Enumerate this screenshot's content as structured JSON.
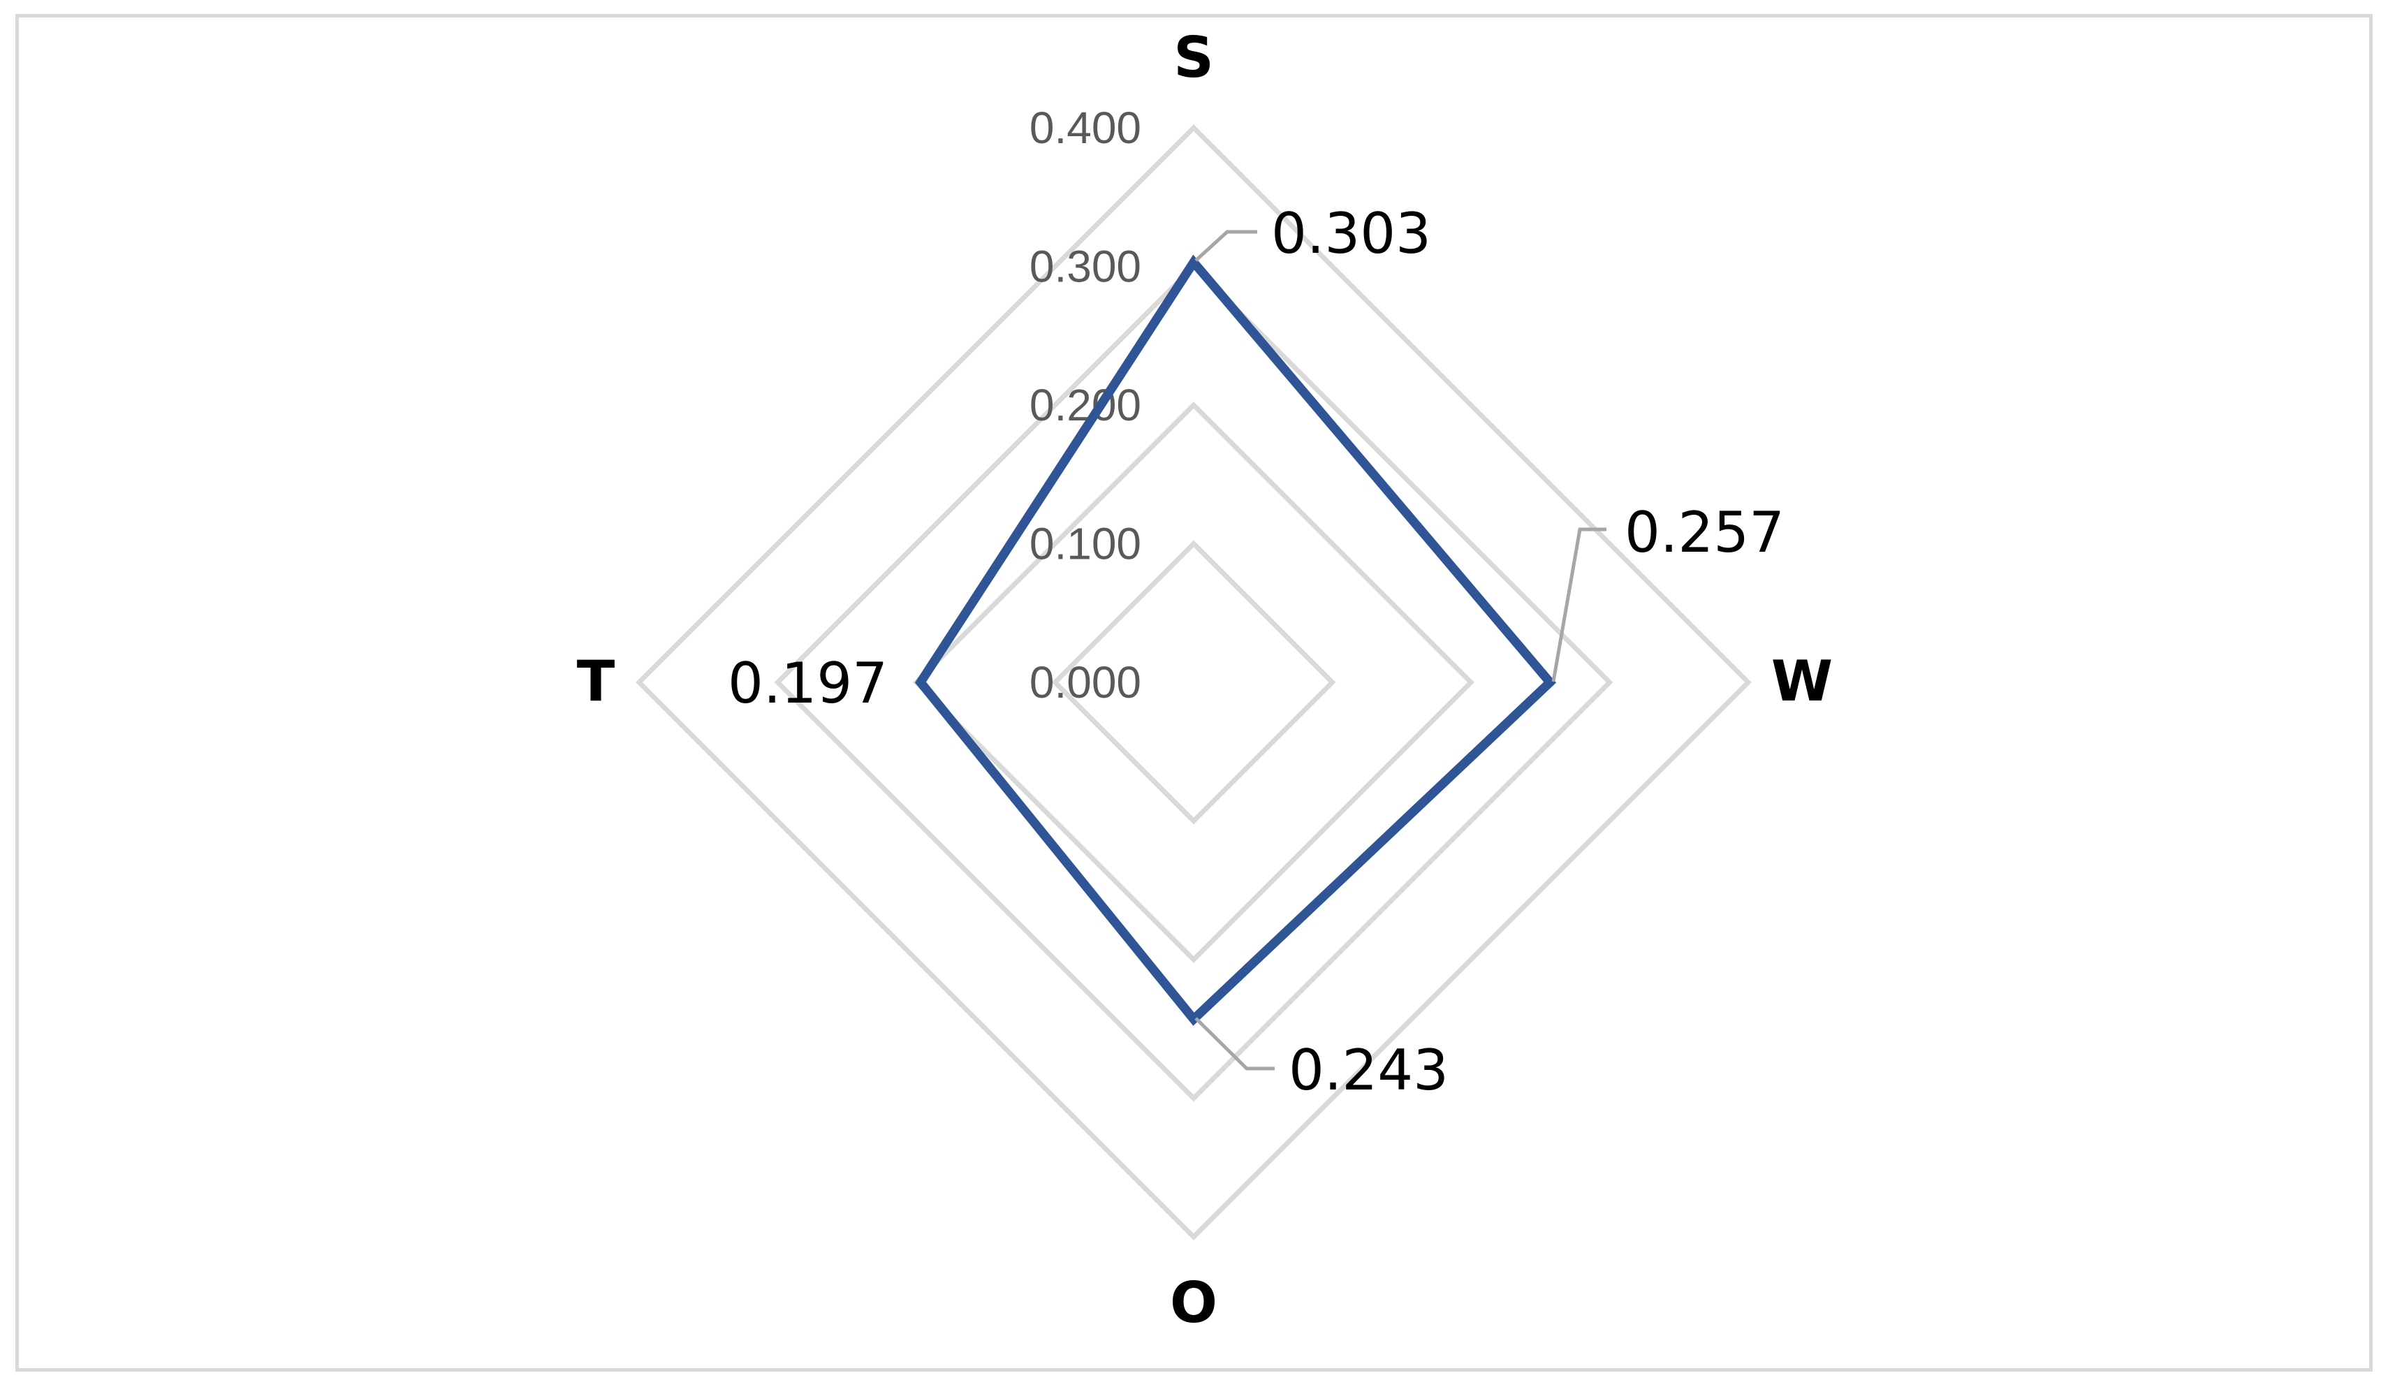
{
  "chart_data": {
    "type": "radar",
    "categories": [
      "S",
      "W",
      "O",
      "T"
    ],
    "series": [
      {
        "values": [
          0.303,
          0.257,
          0.243,
          0.197
        ],
        "data_labels": [
          "0.303",
          "0.257",
          "0.243",
          "0.197"
        ],
        "color": "#2f5597"
      }
    ],
    "radial_axis": {
      "min": 0,
      "max": 0.4,
      "step": 0.1,
      "tick_labels": [
        "0.000",
        "0.100",
        "0.200",
        "0.300",
        "0.400"
      ]
    },
    "grid": true,
    "legend": "none",
    "colors": {
      "grid": "#d9d9d9",
      "tick_text": "#595959",
      "leader_line": "#a6a6a6",
      "border": "#d9d9d9"
    }
  }
}
